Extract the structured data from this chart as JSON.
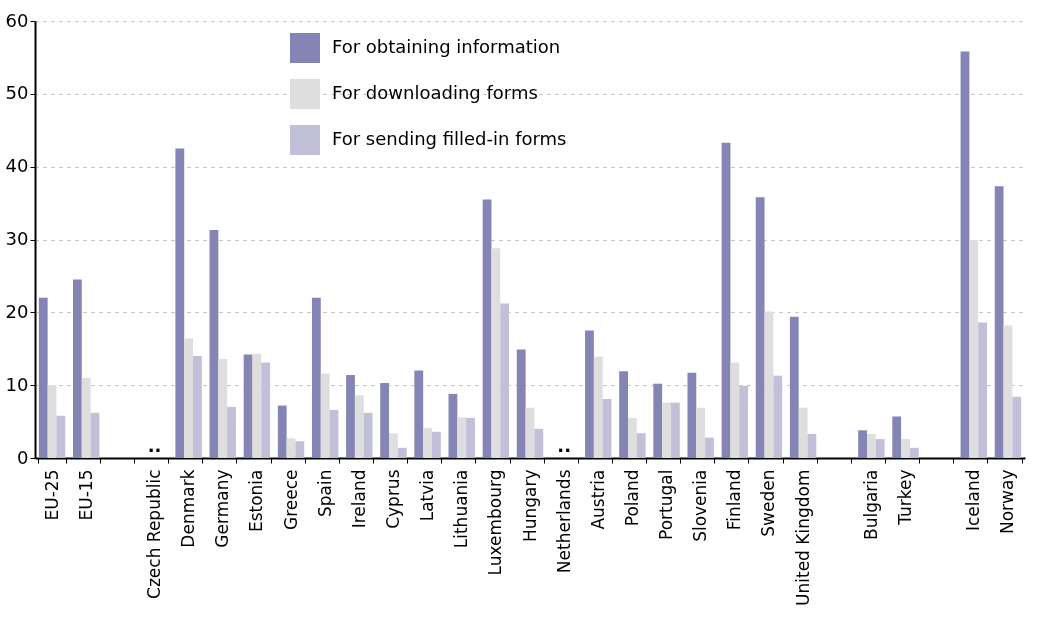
{
  "chart_data": {
    "type": "bar",
    "categories": [
      "EU-25",
      "EU-15",
      null,
      "Czech Republic",
      "Denmark",
      "Germany",
      "Estonia",
      "Greece",
      "Spain",
      "Ireland",
      "Cyprus",
      "Latvia",
      "Lithuania",
      "Luxembourg",
      "Hungary",
      "Netherlands",
      "Austria",
      "Poland",
      "Portugal",
      "Slovenia",
      "Finland",
      "Sweden",
      "United Kingdom",
      null,
      "Bulgaria",
      "Turkey",
      null,
      "Iceland",
      "Norway"
    ],
    "series": [
      {
        "name": "For obtaining information",
        "color": "#8585b5",
        "values": [
          22,
          24.5,
          null,
          null,
          42.5,
          31.3,
          14.2,
          7.2,
          22,
          11.4,
          10.3,
          12,
          8.8,
          35.5,
          14.9,
          null,
          17.5,
          11.9,
          10.2,
          11.7,
          43.3,
          35.8,
          19.4,
          null,
          3.8,
          5.7,
          null,
          55.8,
          37.3
        ]
      },
      {
        "name": "For downloading forms",
        "color": "#dedede",
        "values": [
          10,
          11,
          null,
          null,
          16.4,
          13.6,
          14.3,
          2.7,
          11.6,
          8.6,
          3.4,
          4.1,
          5.6,
          28.8,
          6.9,
          null,
          13.9,
          5.5,
          7.6,
          6.9,
          13.1,
          20.1,
          6.9,
          null,
          3.3,
          2.6,
          null,
          29.9,
          18.2
        ]
      },
      {
        "name": "For sending filled-in forms",
        "color": "#c2bfd9",
        "values": [
          5.8,
          6.2,
          null,
          null,
          14,
          7,
          13.1,
          2.3,
          6.6,
          6.2,
          1.4,
          3.6,
          5.5,
          21.2,
          4,
          null,
          8.1,
          3.4,
          7.6,
          2.8,
          9.9,
          11.3,
          3.3,
          null,
          2.6,
          1.4,
          null,
          18.6,
          8.4
        ]
      }
    ],
    "annotations": [
      "..",
      ".."
    ],
    "ylim": [
      0,
      60
    ],
    "yticks": [
      0,
      10,
      20,
      30,
      40,
      50,
      60
    ],
    "grid": "y",
    "legend": "top"
  }
}
